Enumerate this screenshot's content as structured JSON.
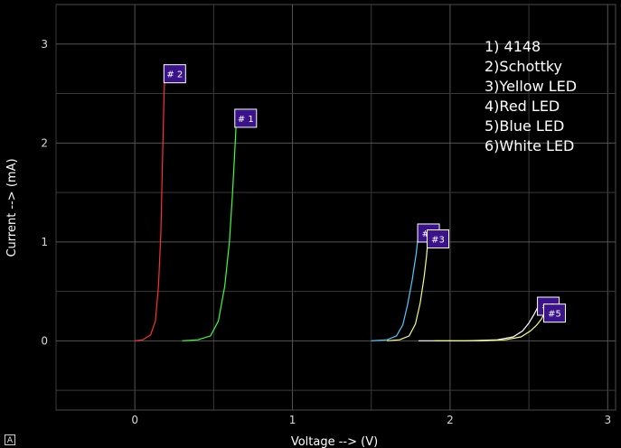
{
  "chart_data": {
    "type": "line",
    "xlabel": "Voltage --> (V)",
    "ylabel": "Current --> (mA)",
    "xlim": [
      -0.5,
      3.05
    ],
    "ylim": [
      -0.7,
      3.4
    ],
    "xticks": [
      0,
      1,
      2,
      3
    ],
    "yticks": [
      0,
      1,
      2,
      3
    ],
    "grid": true,
    "background": "#000000",
    "gridColor": "#3a3a3a",
    "legend": {
      "placement": "top-right",
      "entries": [
        "1) 4148",
        "2)Schottky",
        "3)Yellow LED",
        "4)Red LED",
        "5)Blue LED",
        "6)White LED"
      ]
    },
    "series": [
      {
        "tag": "# 2",
        "color": "#ff3030",
        "tagColor": "#3a138a",
        "tagAt": [
          0.19,
          2.7
        ],
        "points": [
          [
            0,
            0
          ],
          [
            0.05,
            0.01
          ],
          [
            0.1,
            0.06
          ],
          [
            0.13,
            0.2
          ],
          [
            0.15,
            0.55
          ],
          [
            0.165,
            1.1
          ],
          [
            0.175,
            1.8
          ],
          [
            0.185,
            2.45
          ],
          [
            0.19,
            2.7
          ]
        ]
      },
      {
        "tag": "# 1",
        "color": "#3cff3c",
        "tagColor": "#3a138a",
        "tagAt": [
          0.64,
          2.25
        ],
        "points": [
          [
            0.3,
            0
          ],
          [
            0.4,
            0.01
          ],
          [
            0.48,
            0.05
          ],
          [
            0.53,
            0.2
          ],
          [
            0.57,
            0.55
          ],
          [
            0.6,
            1.0
          ],
          [
            0.62,
            1.5
          ],
          [
            0.635,
            1.95
          ],
          [
            0.645,
            2.25
          ]
        ]
      },
      {
        "tag": "#4",
        "color": "#4ecbff",
        "tagColor": "#3a138a",
        "tagAt": [
          1.8,
          1.09
        ],
        "points": [
          [
            1.5,
            0
          ],
          [
            1.6,
            0.01
          ],
          [
            1.66,
            0.05
          ],
          [
            1.7,
            0.16
          ],
          [
            1.73,
            0.36
          ],
          [
            1.76,
            0.62
          ],
          [
            1.785,
            0.88
          ],
          [
            1.8,
            1.09
          ]
        ]
      },
      {
        "tag": "#3",
        "color": "#f7ff80",
        "tagColor": "#3a138a",
        "tagAt": [
          1.86,
          1.03
        ],
        "points": [
          [
            1.6,
            0
          ],
          [
            1.68,
            0.01
          ],
          [
            1.74,
            0.05
          ],
          [
            1.78,
            0.17
          ],
          [
            1.81,
            0.38
          ],
          [
            1.835,
            0.64
          ],
          [
            1.85,
            0.85
          ],
          [
            1.86,
            1.03
          ]
        ]
      },
      {
        "tag": "#6",
        "color": "#ffffff",
        "tagColor": "#3a138a",
        "tagAt": [
          2.56,
          0.35
        ],
        "points": [
          [
            1.8,
            0
          ],
          [
            2.1,
            0.0
          ],
          [
            2.3,
            0.01
          ],
          [
            2.4,
            0.04
          ],
          [
            2.46,
            0.1
          ],
          [
            2.5,
            0.18
          ],
          [
            2.53,
            0.26
          ],
          [
            2.56,
            0.35
          ]
        ]
      },
      {
        "tag": "#5",
        "color": "#f7ff80",
        "tagColor": "#3a138a",
        "tagAt": [
          2.6,
          0.28
        ],
        "points": [
          [
            1.9,
            0
          ],
          [
            2.2,
            0.0
          ],
          [
            2.35,
            0.01
          ],
          [
            2.45,
            0.04
          ],
          [
            2.51,
            0.1
          ],
          [
            2.55,
            0.16
          ],
          [
            2.58,
            0.22
          ],
          [
            2.6,
            0.28
          ]
        ]
      }
    ]
  },
  "corner_glyph": "A"
}
